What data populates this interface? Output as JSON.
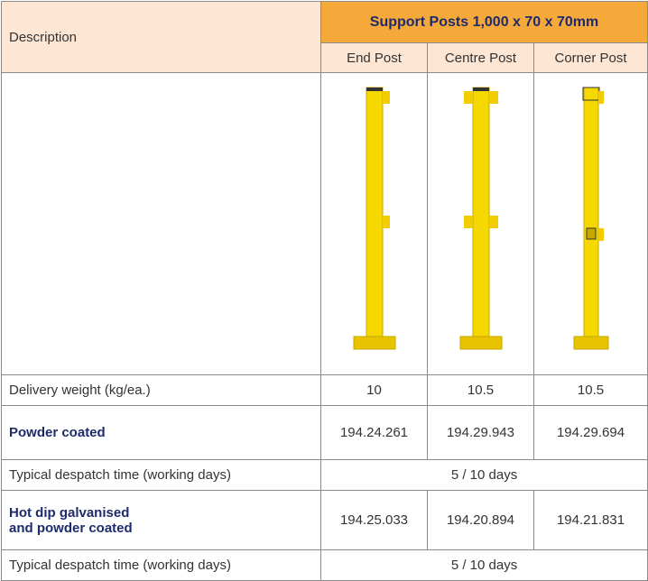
{
  "table": {
    "header": {
      "description": "Description",
      "group": "Support Posts 1,000 x 70 x 70mm",
      "columns": [
        "End Post",
        "Centre Post",
        "Corner Post"
      ]
    },
    "rows": [
      {
        "label": "Delivery weight (kg/ea.)",
        "values": [
          10,
          10.5,
          10.5
        ]
      },
      {
        "label": "Powder coated",
        "values": [
          "194.24.261",
          "194.29.943",
          "194.29.694"
        ]
      },
      {
        "label": "Typical despatch time (working days)",
        "value": "5 / 10 days"
      },
      {
        "label": [
          "Hot dip galvanised",
          "and powder coated"
        ],
        "values": [
          "194.25.033",
          "194.20.894",
          "194.21.831"
        ]
      },
      {
        "label": "Typical despatch time (working days)",
        "value": "5 / 10 days"
      }
    ]
  }
}
